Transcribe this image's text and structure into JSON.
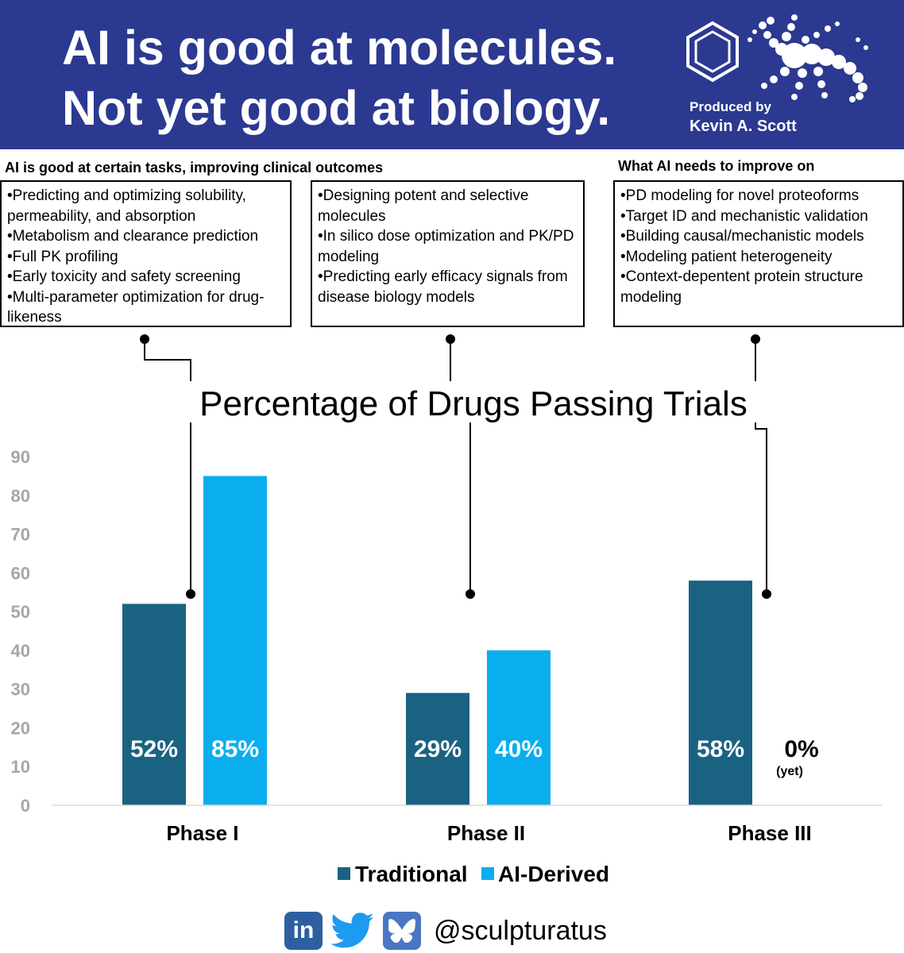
{
  "header": {
    "title_line1": "AI is good at molecules.",
    "title_line2": "Not yet good at biology.",
    "produced_by": "Produced by",
    "author": "Kevin A. Scott"
  },
  "sections": {
    "left_heading": "AI is good at certain tasks, improving clinical outcomes",
    "right_heading": "What AI needs to improve on"
  },
  "boxes": [
    {
      "items": [
        "•Predicting and optimizing solubility, permeability, and absorption",
        "•Metabolism and clearance prediction",
        "•Full PK profiling",
        "•Early toxicity and safety screening",
        "•Multi-parameter optimization for drug-likeness"
      ]
    },
    {
      "items": [
        "•Designing potent and selective molecules",
        "•In silico dose optimization and PK/PD modeling",
        "•Predicting early efficacy signals from disease biology models"
      ]
    },
    {
      "items": [
        "•PD modeling for novel proteoforms",
        "•Target ID and mechanistic validation",
        "•Building causal/mechanistic models",
        "•Modeling patient heterogeneity",
        "•Context-depentent protein structure modeling"
      ]
    }
  ],
  "chart_data": {
    "type": "bar",
    "title": "Percentage of Drugs Passing Trials",
    "categories": [
      "Phase I",
      "Phase II",
      "Phase III"
    ],
    "series": [
      {
        "name": "Traditional",
        "color": "#1a6282",
        "values": [
          52,
          29,
          58
        ],
        "labels": [
          "52%",
          "29%",
          "58%"
        ]
      },
      {
        "name": "AI-Derived",
        "color": "#0aaeee",
        "values": [
          85,
          40,
          0
        ],
        "labels": [
          "85%",
          "40%",
          "0%"
        ]
      }
    ],
    "annotation": "(yet)",
    "yticks": [
      0,
      10,
      20,
      30,
      40,
      50,
      60,
      70,
      80,
      90
    ],
    "ylim": [
      0,
      90
    ],
    "xlabel": "",
    "ylabel": "",
    "grid": false,
    "legend_position": "bottom"
  },
  "social": {
    "handle": "@sculpturatus",
    "icons": [
      "linkedin-icon",
      "twitter-icon",
      "bluesky-icon"
    ],
    "linkedin_text": "in"
  }
}
